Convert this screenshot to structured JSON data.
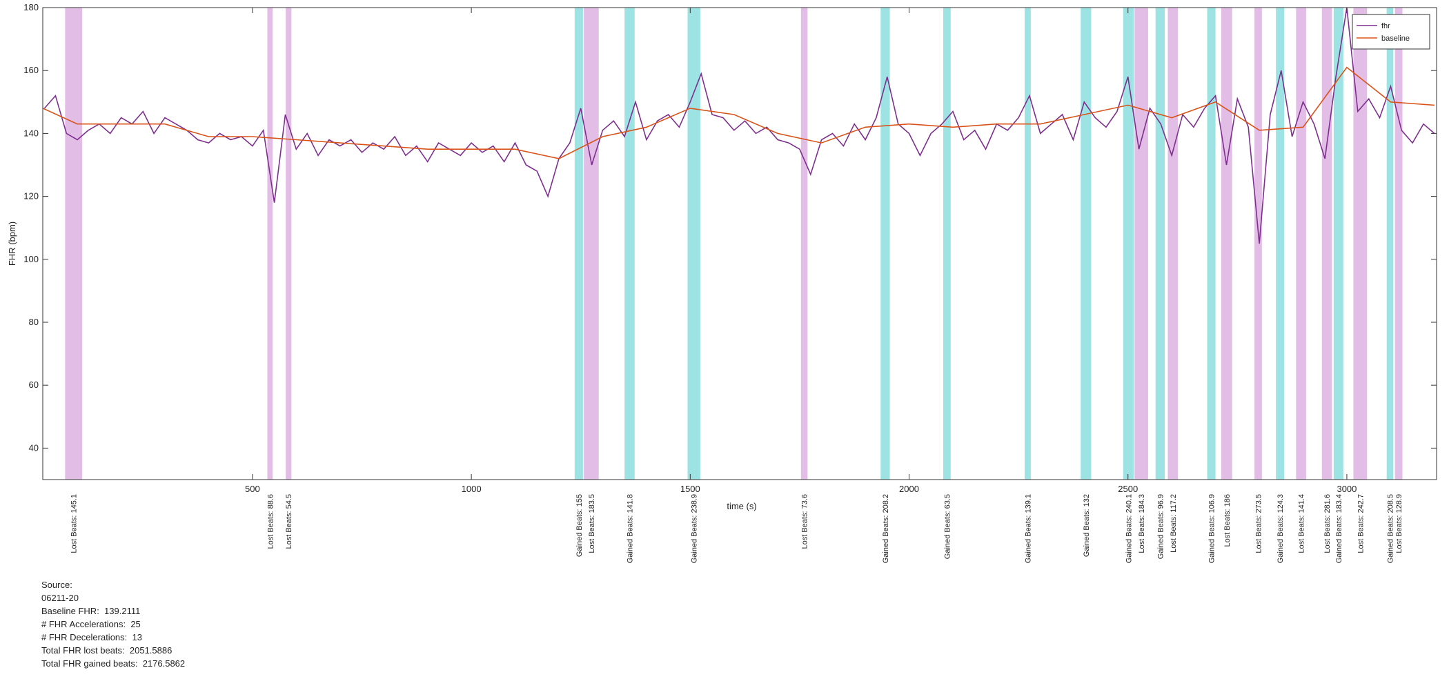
{
  "chart_data": {
    "type": "line",
    "xlabel": "time (s)",
    "ylabel": "FHR (bpm)",
    "xlim": [
      21,
      3205
    ],
    "ylim": [
      30,
      180
    ],
    "xticks": [
      500,
      1000,
      1500,
      2000,
      2500,
      3000
    ],
    "yticks": [
      40,
      60,
      80,
      100,
      120,
      140,
      160,
      180
    ],
    "grid": false,
    "legend": "northeast",
    "series": [
      {
        "name": "fhr",
        "color": "#7e2f8e",
        "x": [
          25,
          50,
          75,
          100,
          125,
          150,
          175,
          200,
          225,
          250,
          275,
          300,
          325,
          350,
          375,
          400,
          425,
          450,
          475,
          500,
          525,
          550,
          575,
          600,
          625,
          650,
          675,
          700,
          725,
          750,
          775,
          800,
          825,
          850,
          875,
          900,
          925,
          950,
          975,
          1000,
          1025,
          1050,
          1075,
          1100,
          1125,
          1150,
          1175,
          1200,
          1225,
          1250,
          1275,
          1300,
          1325,
          1350,
          1375,
          1400,
          1425,
          1450,
          1475,
          1500,
          1525,
          1550,
          1575,
          1600,
          1625,
          1650,
          1675,
          1700,
          1725,
          1750,
          1775,
          1800,
          1825,
          1850,
          1875,
          1900,
          1925,
          1950,
          1975,
          2000,
          2025,
          2050,
          2075,
          2100,
          2125,
          2150,
          2175,
          2200,
          2225,
          2250,
          2275,
          2300,
          2325,
          2350,
          2375,
          2400,
          2425,
          2450,
          2475,
          2500,
          2525,
          2550,
          2575,
          2600,
          2625,
          2650,
          2675,
          2700,
          2725,
          2750,
          2775,
          2800,
          2825,
          2850,
          2875,
          2900,
          2925,
          2950,
          2975,
          3000,
          3025,
          3050,
          3075,
          3100,
          3125,
          3150,
          3175,
          3200
        ],
        "values": [
          148,
          152,
          140,
          138,
          141,
          143,
          140,
          145,
          143,
          147,
          140,
          145,
          143,
          141,
          138,
          137,
          140,
          138,
          139,
          136,
          141,
          118,
          146,
          135,
          140,
          133,
          138,
          136,
          138,
          134,
          137,
          135,
          139,
          133,
          136,
          131,
          137,
          135,
          133,
          137,
          134,
          136,
          131,
          137,
          130,
          128,
          120,
          132,
          137,
          148,
          130,
          141,
          144,
          139,
          150,
          138,
          144,
          146,
          142,
          150,
          159,
          146,
          145,
          141,
          144,
          140,
          142,
          138,
          137,
          135,
          127,
          138,
          140,
          136,
          143,
          138,
          145,
          158,
          143,
          140,
          133,
          140,
          143,
          147,
          138,
          141,
          135,
          143,
          141,
          145,
          152,
          140,
          143,
          146,
          138,
          150,
          145,
          142,
          147,
          158,
          135,
          148,
          143,
          133,
          146,
          142,
          148,
          152,
          130,
          151,
          142,
          105,
          146,
          160,
          139,
          150,
          143,
          132,
          158,
          180,
          147,
          151,
          145,
          155,
          141,
          137,
          143,
          140
        ]
      },
      {
        "name": "baseline",
        "color": "#d95319",
        "x": [
          21,
          100,
          200,
          300,
          400,
          500,
          600,
          700,
          800,
          900,
          1000,
          1100,
          1200,
          1300,
          1400,
          1500,
          1600,
          1700,
          1800,
          1900,
          2000,
          2100,
          2200,
          2300,
          2400,
          2500,
          2600,
          2700,
          2800,
          2900,
          3000,
          3100,
          3200
        ],
        "values": [
          148,
          143,
          143,
          143,
          139,
          139,
          138,
          137,
          136,
          135,
          135,
          135,
          132,
          139,
          142,
          148,
          146,
          140,
          137,
          142,
          143,
          142,
          143,
          143,
          146,
          149,
          145,
          150,
          141,
          142,
          161,
          150,
          149
        ]
      }
    ],
    "events": [
      {
        "label": "Lost Beats: 145.1",
        "start": 72,
        "end": 111,
        "color": "#e2bde6"
      },
      {
        "label": "Lost Beats: 88.6",
        "start": 534,
        "end": 546,
        "color": "#e2bde6"
      },
      {
        "label": "Lost Beats: 54.5",
        "start": 576,
        "end": 589,
        "color": "#e2bde6"
      },
      {
        "label": "Gained Beats: 155",
        "start": 1236,
        "end": 1255,
        "color": "#9de3e3"
      },
      {
        "label": "Lost Beats: 183.5",
        "start": 1257,
        "end": 1291,
        "color": "#e2bde6"
      },
      {
        "label": "Gained Beats: 141.8",
        "start": 1350,
        "end": 1373,
        "color": "#9de3e3"
      },
      {
        "label": "Gained Beats: 238.9",
        "start": 1494,
        "end": 1523,
        "color": "#9de3e3"
      },
      {
        "label": "Lost Beats: 73.6",
        "start": 1753,
        "end": 1768,
        "color": "#e2bde6"
      },
      {
        "label": "Gained Beats: 208.2",
        "start": 1935,
        "end": 1956,
        "color": "#9de3e3"
      },
      {
        "label": "Gained Beats: 63.5",
        "start": 2078,
        "end": 2095,
        "color": "#9de3e3"
      },
      {
        "label": "Gained Beats: 139.1",
        "start": 2264,
        "end": 2278,
        "color": "#9de3e3"
      },
      {
        "label": "Gained Beats: 132",
        "start": 2392,
        "end": 2416,
        "color": "#9de3e3"
      },
      {
        "label": "Gained Beats: 240.1",
        "start": 2489,
        "end": 2513,
        "color": "#9de3e3"
      },
      {
        "label": "Lost Beats: 184.3",
        "start": 2515,
        "end": 2546,
        "color": "#e2bde6"
      },
      {
        "label": "Gained Beats: 96.9",
        "start": 2563,
        "end": 2584,
        "color": "#9de3e3"
      },
      {
        "label": "Lost Beats: 117.2",
        "start": 2591,
        "end": 2614,
        "color": "#e2bde6"
      },
      {
        "label": "Gained Beats: 106.9",
        "start": 2681,
        "end": 2700,
        "color": "#9de3e3"
      },
      {
        "label": "Lost Beats: 186",
        "start": 2713,
        "end": 2738,
        "color": "#e2bde6"
      },
      {
        "label": "Lost Beats: 273.5",
        "start": 2789,
        "end": 2806,
        "color": "#e2bde6"
      },
      {
        "label": "Gained Beats: 124.3",
        "start": 2838,
        "end": 2857,
        "color": "#9de3e3"
      },
      {
        "label": "Lost Beats: 141.4",
        "start": 2884,
        "end": 2907,
        "color": "#e2bde6"
      },
      {
        "label": "Lost Beats: 281.6",
        "start": 2943,
        "end": 2966,
        "color": "#e2bde6"
      },
      {
        "label": "Gained Beats: 183.4",
        "start": 2970,
        "end": 2992,
        "color": "#9de3e3"
      },
      {
        "label": "Lost Beats: 242.7",
        "start": 3015,
        "end": 3046,
        "color": "#e2bde6"
      },
      {
        "label": "Gained Beats: 208.5",
        "start": 3091,
        "end": 3106,
        "color": "#9de3e3"
      },
      {
        "label": "Lost Beats: 128.9",
        "start": 3110,
        "end": 3127,
        "color": "#e2bde6"
      }
    ]
  },
  "info": {
    "lines": [
      "Source:",
      "06211-20",
      "Baseline FHR:  139.2111",
      "# FHR Accelerations:  25",
      "# FHR Decelerations:  13",
      "Total FHR lost beats:  2051.5886",
      "Total FHR gained beats:  2176.5862"
    ]
  }
}
